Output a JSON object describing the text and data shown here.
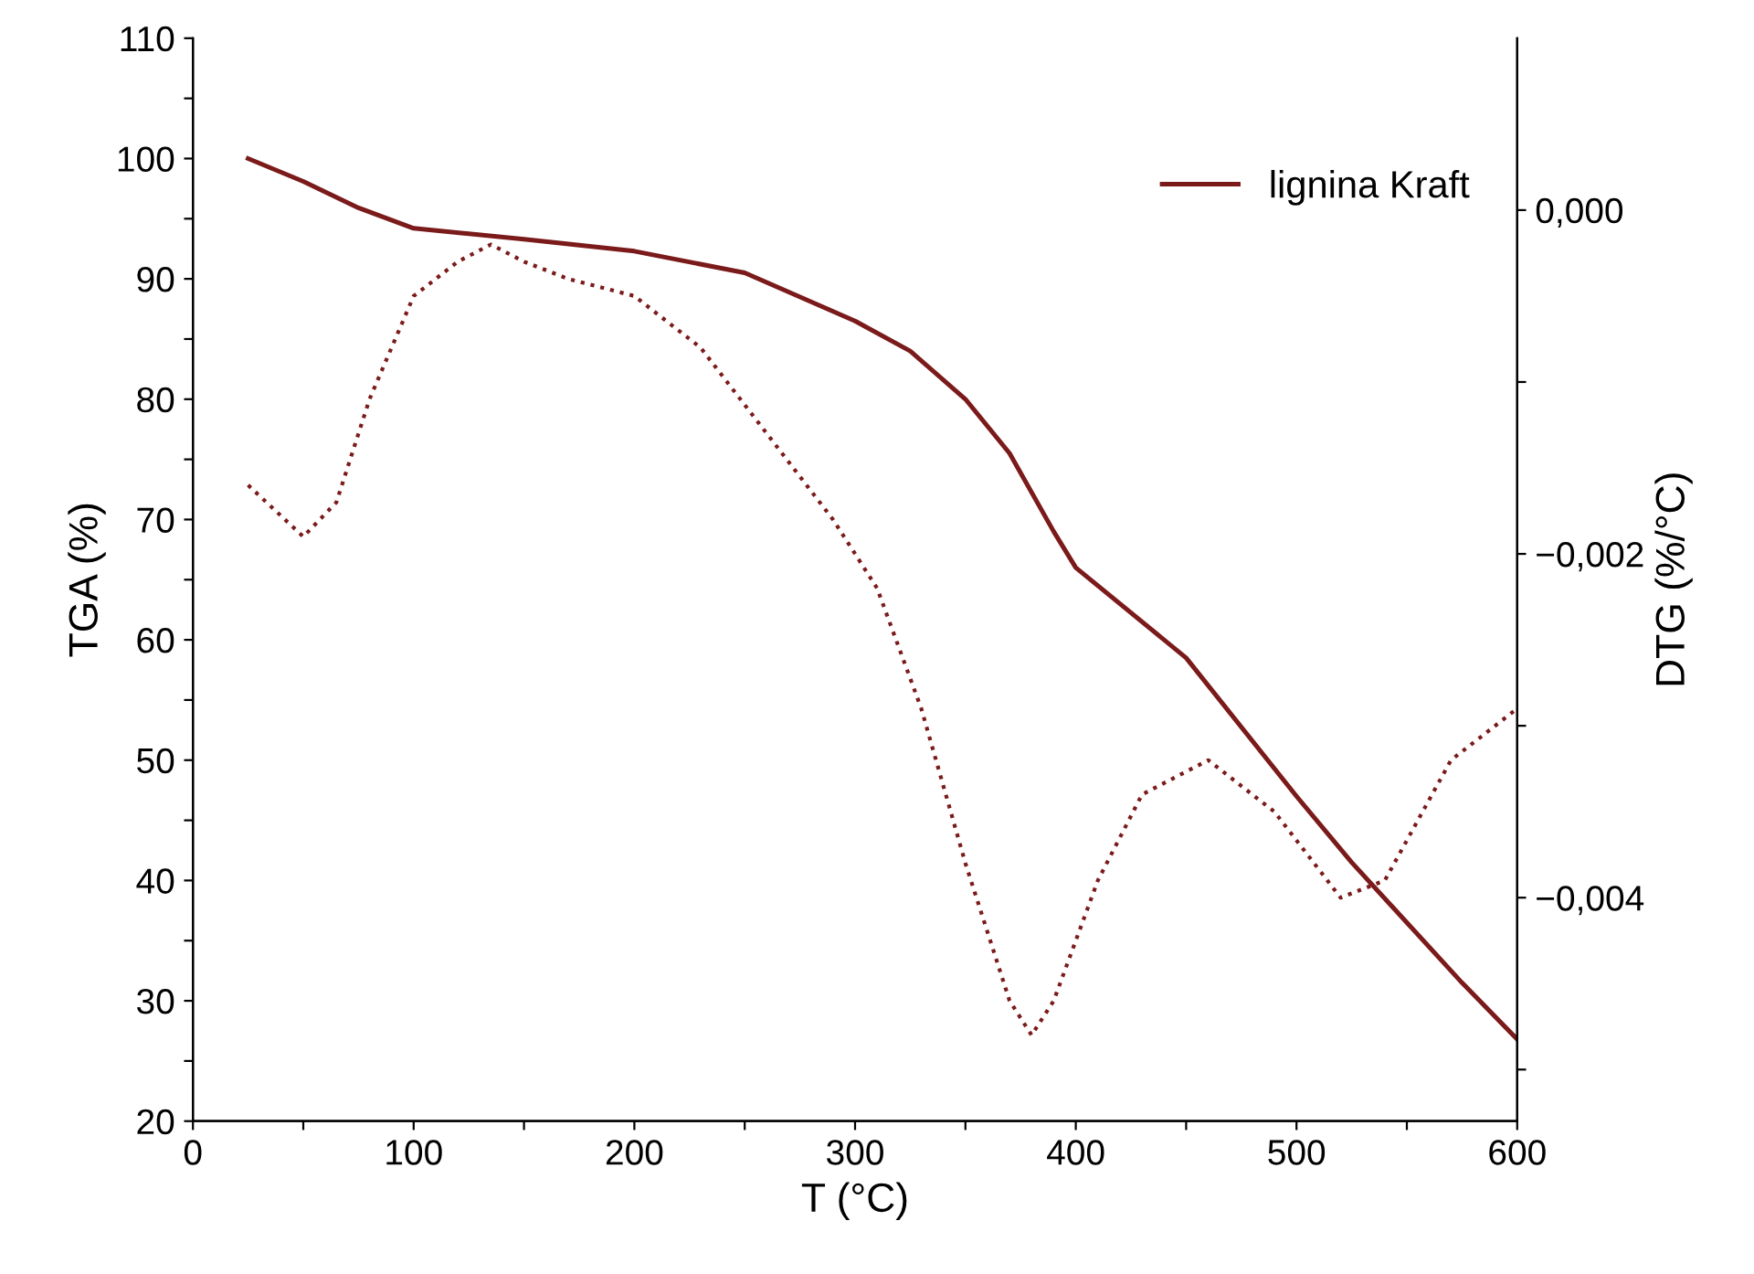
{
  "chart_data": {
    "type": "line",
    "xlabel": "T (°C)",
    "ylabel": "TGA (%)",
    "y2label": "DTG (%/°C)",
    "legend": "top right",
    "grid": false,
    "xlim": [
      0,
      600
    ],
    "xticks": [
      0,
      {
        "value": 50,
        "label": null
      },
      100,
      {
        "value": 150,
        "label": null
      },
      200,
      {
        "value": 250,
        "label": null
      },
      300,
      {
        "value": 350,
        "label": null
      },
      400,
      {
        "value": 450,
        "label": null
      },
      500,
      {
        "value": 550,
        "label": null
      },
      600
    ],
    "ylim": [
      20,
      110
    ],
    "yticks": [
      20,
      {
        "value": 25,
        "label": null
      },
      30,
      {
        "value": 35,
        "label": null
      },
      40,
      {
        "value": 45,
        "label": null
      },
      50,
      {
        "value": 55,
        "label": null
      },
      60,
      {
        "value": 65,
        "label": null
      },
      70,
      {
        "value": 75,
        "label": null
      },
      80,
      {
        "value": 85,
        "label": null
      },
      90,
      {
        "value": 95,
        "label": null
      },
      100,
      {
        "value": 105,
        "label": null
      },
      110
    ],
    "y2lim": [
      -0.0053,
      0.001
    ],
    "y2ticks": [
      {
        "value": 0,
        "label": "0,000"
      },
      {
        "value": -0.001,
        "label": null
      },
      {
        "value": -0.002,
        "label": "−0,002"
      },
      {
        "value": -0.003,
        "label": null
      },
      {
        "value": -0.004,
        "label": "−0,004"
      },
      {
        "value": -0.005,
        "label": null
      }
    ],
    "series": [
      {
        "name": "lignina Kraft",
        "color": "#7b1a1a",
        "line_style": "solid",
        "x": [
          25,
          50,
          75,
          100,
          150,
          200,
          250,
          300,
          325,
          350,
          370,
          390,
          400,
          450,
          500,
          525,
          550,
          575,
          600
        ],
        "values": [
          100.0,
          98.1,
          95.9,
          94.2,
          93.3,
          92.3,
          90.5,
          86.5,
          84.0,
          80.0,
          75.5,
          69.0,
          66.0,
          58.5,
          47.0,
          41.5,
          36.5,
          31.5,
          26.8
        ]
      },
      {
        "color": "#7b1a1a",
        "line_style": "dotted",
        "axis": "y2",
        "x": [
          25,
          50,
          65,
          80,
          100,
          120,
          135,
          150,
          170,
          200,
          230,
          260,
          290,
          310,
          330,
          350,
          370,
          380,
          390,
          410,
          430,
          460,
          490,
          520,
          540,
          570,
          600
        ],
        "values": [
          -0.0016,
          -0.0019,
          -0.0017,
          -0.0011,
          -0.0005,
          -0.0003,
          -0.0002,
          -0.0003,
          -0.0004,
          -0.0005,
          -0.0008,
          -0.0013,
          -0.0018,
          -0.0022,
          -0.0029,
          -0.0038,
          -0.0046,
          -0.0048,
          -0.0046,
          -0.0039,
          -0.0034,
          -0.0032,
          -0.0035,
          -0.004,
          -0.0039,
          -0.0032,
          -0.0029
        ]
      }
    ]
  }
}
